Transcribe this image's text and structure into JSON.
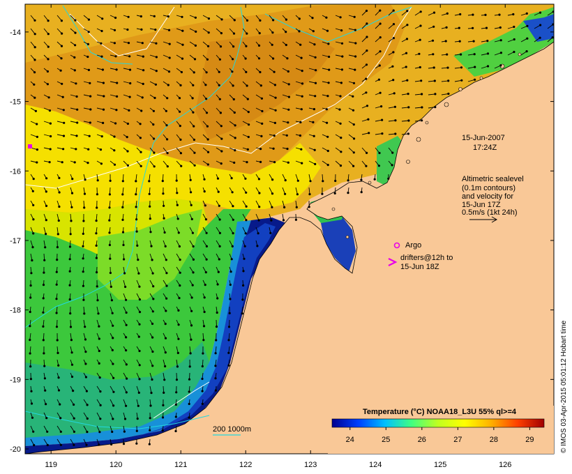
{
  "map": {
    "x_ticks": [
      "119",
      "120",
      "121",
      "122",
      "123",
      "124",
      "125",
      "126"
    ],
    "y_ticks": [
      "-14",
      "-15",
      "-16",
      "-17",
      "-18",
      "-19",
      "-20"
    ],
    "x_range": [
      118.6,
      126.75
    ],
    "y_range": [
      -20.07,
      -13.6
    ],
    "colors": {
      "land": "#f9c897",
      "deep_blue": "#071a8a",
      "grid": "#000000"
    }
  },
  "annotations": {
    "date_line1": "15-Jun-2007",
    "date_line2": "17:24Z",
    "sealevel_line1": "Altimetric sealevel",
    "sealevel_line2": "(0.1m contours)",
    "sealevel_line3": "and velocity for",
    "sealevel_line4": "15-Jun 17Z",
    "sealevel_line5": "0.5m/s (1kt 24h)",
    "argo_label": "Argo",
    "drifters_line1": "drifters@12h to",
    "drifters_line2": "15-Jun 18Z",
    "bathy_label": "200  1000m"
  },
  "colorbar": {
    "title": "Temperature (°C) NOAA18_L3U 55% ql>=4",
    "ticks": [
      "24",
      "25",
      "26",
      "27",
      "28",
      "29"
    ],
    "range": [
      23.5,
      29.4
    ],
    "stops": [
      "#00008f",
      "#0040ff",
      "#00c0ff",
      "#40ff80",
      "#c0ff20",
      "#ffff00",
      "#ffb000",
      "#ff4000",
      "#a00000"
    ]
  },
  "credit": "© IMOS 03-Apr-2015 05:01:12 Hobart time",
  "markers": {
    "argo_color": "#e800e8",
    "drifter_color": "#e800e8"
  }
}
